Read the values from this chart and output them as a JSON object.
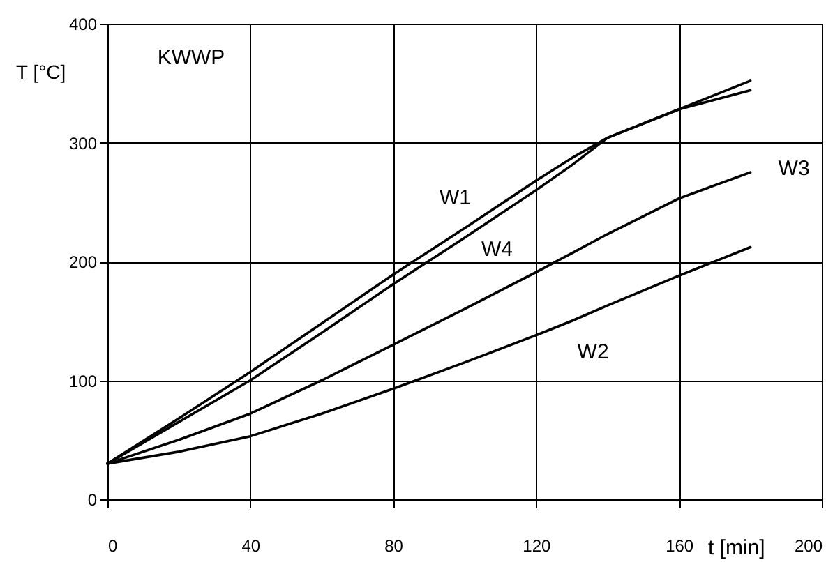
{
  "chart_data": {
    "type": "line",
    "xlabel": "t [min]",
    "ylabel": "T [°C]",
    "annotations": [
      "KWWP"
    ],
    "x": [
      0,
      20,
      40,
      60,
      80,
      100,
      120,
      130,
      140,
      160,
      180
    ],
    "series": [
      {
        "name": "W1",
        "color": "#000000",
        "values": [
          30,
          68,
          107,
          148,
          189,
          228,
          268,
          287,
          304,
          328,
          344
        ]
      },
      {
        "name": "W4",
        "color": "#000000",
        "values": [
          30,
          65,
          100,
          140,
          181,
          220,
          260,
          281,
          304,
          328,
          352
        ]
      },
      {
        "name": "W3",
        "color": "#000000",
        "values": [
          30,
          50,
          72,
          100,
          130,
          160,
          191,
          207,
          223,
          253,
          275
        ]
      },
      {
        "name": "W2",
        "color": "#000000",
        "values": [
          30,
          40,
          53,
          72,
          93,
          115,
          138,
          150,
          163,
          188,
          212
        ]
      }
    ],
    "xlim": [
      0,
      200
    ],
    "xticks": [
      0,
      40,
      80,
      120,
      160,
      200
    ],
    "ylim": [
      0,
      400
    ],
    "yticks": [
      0,
      100,
      200,
      300,
      400
    ],
    "grid": true,
    "marker": "none",
    "line_style": "solid"
  }
}
